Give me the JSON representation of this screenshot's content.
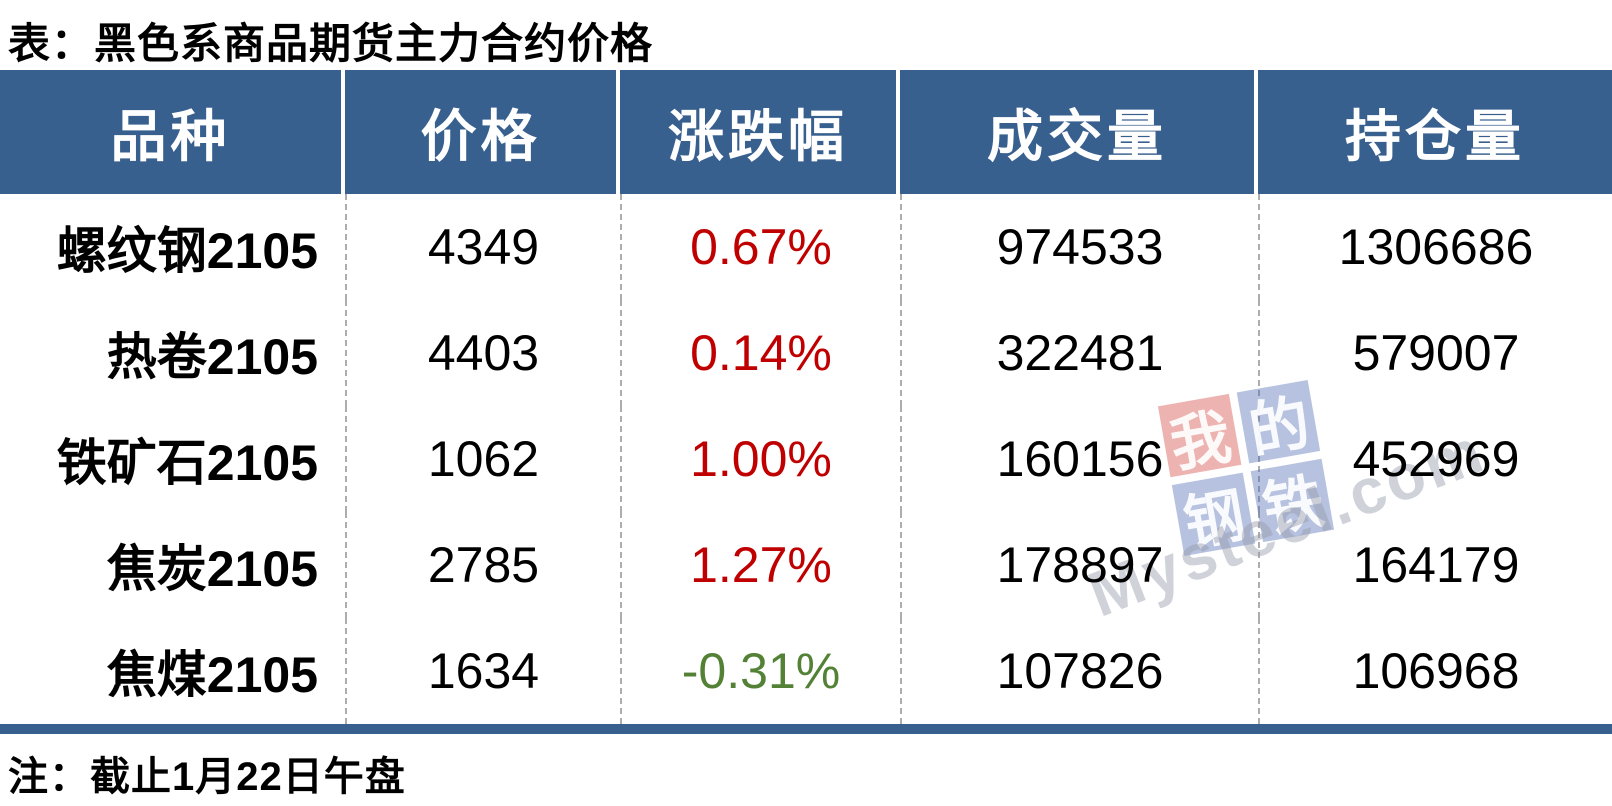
{
  "title": "表：黑色系商品期货主力合约价格",
  "note": "注：截止1月22日午盘",
  "colors": {
    "header_bg": "#38608F",
    "alt_row_bg": "#DCE6F1",
    "up": "#C00000",
    "down": "#538135"
  },
  "table": {
    "headers": [
      "品种",
      "价格",
      "涨跌幅",
      "成交量",
      "持仓量"
    ],
    "rows": [
      {
        "variety": "螺纹钢2105",
        "price": "4349",
        "change": "0.67%",
        "volume": "974533",
        "open_interest": "1306686"
      },
      {
        "variety": "热卷2105",
        "price": "4403",
        "change": "0.14%",
        "volume": "322481",
        "open_interest": "579007"
      },
      {
        "variety": "铁矿石2105",
        "price": "1062",
        "change": "1.00%",
        "volume": "160156",
        "open_interest": "452969"
      },
      {
        "variety": "焦炭2105",
        "price": "2785",
        "change": "1.27%",
        "volume": "178897",
        "open_interest": "164179"
      },
      {
        "variety": "焦煤2105",
        "price": "1634",
        "change": "-0.31%",
        "volume": "107826",
        "open_interest": "106968"
      }
    ]
  },
  "watermark": {
    "tiles": [
      "我",
      "的",
      "钢",
      "铁"
    ],
    "text": "Mysteel.com"
  },
  "chart_data": {
    "type": "table",
    "title": "表：黑色系商品期货主力合约价格",
    "columns": [
      "品种",
      "价格",
      "涨跌幅",
      "成交量",
      "持仓量"
    ],
    "rows": [
      [
        "螺纹钢2105",
        4349,
        "0.67%",
        974533,
        1306686
      ],
      [
        "热卷2105",
        4403,
        "0.14%",
        322481,
        579007
      ],
      [
        "铁矿石2105",
        1062,
        "1.00%",
        160156,
        452969
      ],
      [
        "焦炭2105",
        2785,
        "1.27%",
        178897,
        164179
      ],
      [
        "焦煤2105",
        1634,
        "-0.31%",
        107826,
        106968
      ]
    ],
    "note": "注：截止1月22日午盘"
  }
}
